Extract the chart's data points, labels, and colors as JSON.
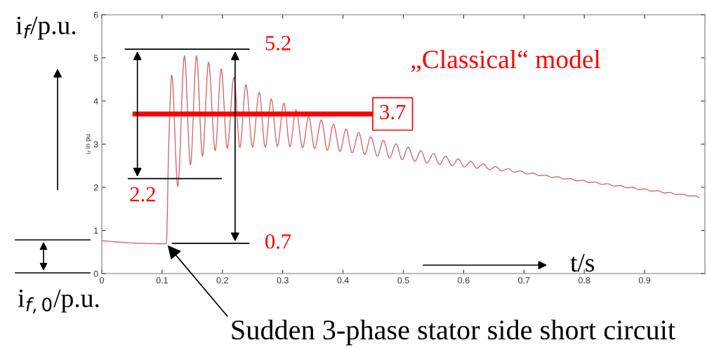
{
  "chart_data": {
    "type": "line",
    "ylabel": "i$_{f}$ in pu",
    "x": [
      0,
      0.05,
      0.104,
      0.107,
      0.111,
      0.116,
      0.126,
      0.137,
      0.147,
      0.157,
      0.167,
      0.177,
      0.188,
      0.198,
      0.208,
      0.219,
      0.229,
      0.239,
      0.25,
      0.261,
      0.271,
      0.281,
      0.291,
      0.302,
      0.312,
      0.322,
      0.333,
      0.343,
      0.353,
      0.364,
      0.374,
      0.384,
      0.395,
      0.405,
      0.415,
      0.426,
      0.436,
      0.446,
      0.457,
      0.467,
      0.477,
      0.488,
      0.498,
      0.508,
      0.519,
      0.529,
      0.539,
      0.55,
      0.56,
      0.57,
      0.581,
      0.591,
      0.601,
      0.612,
      0.622,
      0.632,
      0.643,
      0.653,
      0.663,
      0.674,
      0.684,
      0.694,
      0.705,
      0.715,
      0.725,
      0.736,
      0.746,
      0.756,
      0.767,
      0.777,
      0.787,
      0.798,
      0.808,
      0.818,
      0.829,
      0.839,
      0.849,
      0.86,
      0.87,
      0.88,
      0.891,
      0.901,
      0.911,
      0.922,
      0.932,
      0.942,
      0.953,
      0.963,
      0.973,
      0.984,
      0.99
    ],
    "series": [
      {
        "color": "#d46a6e",
        "values": [
          0.76,
          0.71,
          0.69,
          0.7,
          3.0,
          4.6,
          2.02,
          5.05,
          2.52,
          5.05,
          2.72,
          4.9,
          2.85,
          4.75,
          2.9,
          4.55,
          2.92,
          4.38,
          2.93,
          4.2,
          2.93,
          4.05,
          2.95,
          3.95,
          2.94,
          3.8,
          2.92,
          3.64,
          2.9,
          3.56,
          2.86,
          3.46,
          2.83,
          3.35,
          2.8,
          3.27,
          2.76,
          3.17,
          2.72,
          3.09,
          2.68,
          3.01,
          2.64,
          2.93,
          2.6,
          2.85,
          2.56,
          2.78,
          2.53,
          2.72,
          2.5,
          2.66,
          2.47,
          2.6,
          2.44,
          2.54,
          2.41,
          2.48,
          2.38,
          2.43,
          2.35,
          2.38,
          2.31,
          2.33,
          2.27,
          2.28,
          2.23,
          2.24,
          2.19,
          2.2,
          2.15,
          2.16,
          2.11,
          2.12,
          2.07,
          2.08,
          2.03,
          2.04,
          1.99,
          2.0,
          1.95,
          1.96,
          1.91,
          1.92,
          1.87,
          1.88,
          1.83,
          1.84,
          1.8,
          1.8,
          1.77
        ]
      }
    ],
    "xlim": [
      0,
      1
    ],
    "ylim": [
      0,
      6
    ],
    "xticks": [
      0,
      0.1,
      0.2,
      0.3,
      0.4,
      0.5,
      0.6,
      0.7,
      0.8,
      0.9
    ],
    "yticks": [
      0,
      1,
      2,
      3,
      4,
      5,
      6
    ],
    "grid": false,
    "legend": false,
    "marker": "none",
    "line_style": "solid",
    "ref_lines": [
      {
        "axis": "y",
        "value": 5.2,
        "label": "5.2",
        "color": "#000000"
      },
      {
        "axis": "y",
        "value": 2.2,
        "label": "2.2",
        "color": "#000000"
      },
      {
        "axis": "y",
        "value": 0.7,
        "label": "0.7",
        "color": "#000000"
      },
      {
        "axis": "y",
        "value": 3.7,
        "label": "3.7",
        "color": "#ff0000"
      }
    ],
    "annotations": [
      "i$_{f}$/p.u.",
      "i$_{f,0}$/p.u.",
      "t/s",
      "„Classical“ model",
      {
        "text": "Sudden 3-phase stator side short circuit",
        "x": 0.107,
        "y": 0.69
      }
    ]
  }
}
